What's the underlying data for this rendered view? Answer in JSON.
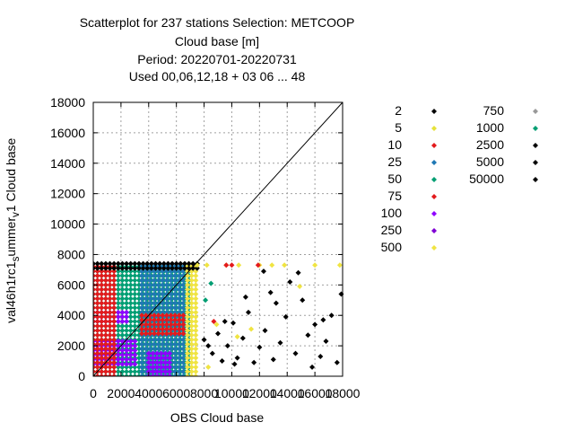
{
  "title_lines": [
    "Scatterplot for  237 stations Selection: METCOOP",
    "Cloud base [m]",
    "Period: 20220701-20220731",
    "Used  00,06,12,18  + 03 06 ... 48"
  ],
  "chart_data": {
    "type": "scatter",
    "xlabel": "OBS Cloud base",
    "ylabel_parts": [
      "val46h1rc1",
      "s",
      "ummer",
      "v",
      "1 Cloud base"
    ],
    "xlim": [
      0,
      18000
    ],
    "ylim": [
      0,
      18000
    ],
    "xticks": [
      0,
      2000,
      4000,
      6000,
      8000,
      10000,
      12000,
      14000,
      16000,
      18000
    ],
    "yticks": [
      0,
      2000,
      4000,
      6000,
      8000,
      10000,
      12000,
      14000,
      16000,
      18000
    ],
    "grid": true,
    "diagonal": true,
    "legend_position": "right",
    "legend": [
      {
        "label": "2",
        "color": "#000000"
      },
      {
        "label": "5",
        "color": "#e6e23a"
      },
      {
        "label": "10",
        "color": "#e31a1c"
      },
      {
        "label": "25",
        "color": "#1f78b4"
      },
      {
        "label": "50",
        "color": "#009e73"
      },
      {
        "label": "75",
        "color": "#e31a1c"
      },
      {
        "label": "100",
        "color": "#8f00ff"
      },
      {
        "label": "250",
        "color": "#7f00d4"
      },
      {
        "label": "500",
        "color": "#f0e442"
      },
      {
        "label": "750",
        "color": "#999999"
      },
      {
        "label": "1000",
        "color": "#009e73"
      },
      {
        "label": "2500",
        "color": "#000000"
      },
      {
        "label": "5000",
        "color": "#000000"
      },
      {
        "label": "50000",
        "color": "#000000"
      }
    ],
    "dense_blocks": [
      {
        "x": [
          0,
          7000
        ],
        "y": [
          0,
          7300
        ],
        "color": "#009e73"
      },
      {
        "x": [
          3500,
          7000
        ],
        "y": [
          0,
          7300
        ],
        "color": "#1f78b4"
      },
      {
        "x": [
          0,
          3000
        ],
        "y": [
          800,
          2500
        ],
        "color": "#8f00ff"
      },
      {
        "x": [
          0,
          2500
        ],
        "y": [
          3600,
          4400
        ],
        "color": "#8f00ff"
      },
      {
        "x": [
          4000,
          5500
        ],
        "y": [
          0,
          1600
        ],
        "color": "#8f00ff"
      },
      {
        "x": [
          3500,
          6500
        ],
        "y": [
          2800,
          4000
        ],
        "color": "#e31a1c"
      },
      {
        "x": [
          0,
          1500
        ],
        "y": [
          0,
          7300
        ],
        "color": "#e31a1c"
      },
      {
        "x": [
          6800,
          7500
        ],
        "y": [
          0,
          7300
        ],
        "color": "#f0e442"
      },
      {
        "x": [
          0,
          7500
        ],
        "y": [
          7100,
          7400
        ],
        "color": "#000000"
      }
    ],
    "series_points": [
      {
        "color": "#000000",
        "points": [
          [
            8000,
            2400
          ],
          [
            8300,
            2000
          ],
          [
            8600,
            1500
          ],
          [
            9000,
            2800
          ],
          [
            9300,
            1000
          ],
          [
            9700,
            2000
          ],
          [
            10100,
            3500
          ],
          [
            10400,
            1200
          ],
          [
            10800,
            2500
          ],
          [
            11200,
            4200
          ],
          [
            11600,
            900
          ],
          [
            12000,
            1900
          ],
          [
            12400,
            3000
          ],
          [
            12800,
            5500
          ],
          [
            13200,
            4800
          ],
          [
            13500,
            2200
          ],
          [
            13900,
            3900
          ],
          [
            14200,
            6200
          ],
          [
            14600,
            1500
          ],
          [
            15100,
            5000
          ],
          [
            15500,
            2700
          ],
          [
            16000,
            3400
          ],
          [
            16400,
            1300
          ],
          [
            16800,
            2300
          ],
          [
            17200,
            4000
          ],
          [
            17600,
            900
          ],
          [
            17900,
            5400
          ],
          [
            12300,
            6900
          ],
          [
            11000,
            5200
          ],
          [
            14800,
            6800
          ],
          [
            10200,
            800
          ],
          [
            16600,
            3700
          ],
          [
            13000,
            1100
          ],
          [
            9500,
            3600
          ],
          [
            15800,
            600
          ]
        ]
      },
      {
        "color": "#f0e442",
        "points": [
          [
            7500,
            7300
          ],
          [
            8200,
            7300
          ],
          [
            8900,
            3400
          ],
          [
            9600,
            7300
          ],
          [
            10500,
            7300
          ],
          [
            11400,
            3100
          ],
          [
            12000,
            7300
          ],
          [
            12900,
            7300
          ],
          [
            13800,
            7300
          ],
          [
            14900,
            5900
          ],
          [
            16000,
            7300
          ],
          [
            17800,
            7300
          ],
          [
            8300,
            600
          ],
          [
            10400,
            2600
          ]
        ]
      },
      {
        "color": "#e31a1c",
        "points": [
          [
            9600,
            7300
          ],
          [
            10000,
            7300
          ],
          [
            11900,
            7300
          ],
          [
            8700,
            3600
          ]
        ]
      },
      {
        "color": "#009e73",
        "points": [
          [
            8100,
            5000
          ],
          [
            8500,
            6100
          ]
        ]
      }
    ]
  }
}
